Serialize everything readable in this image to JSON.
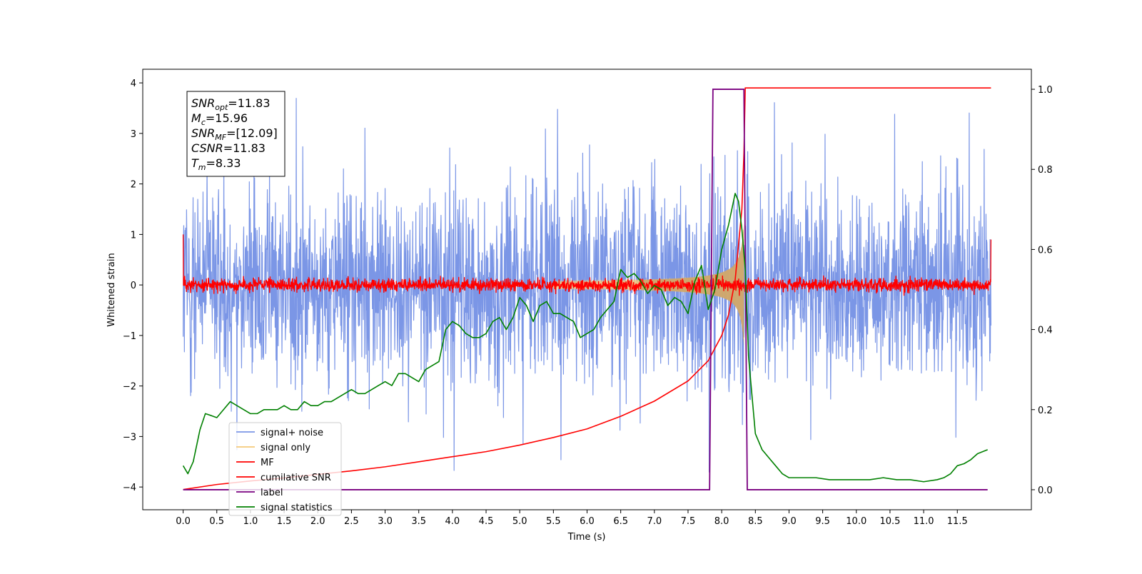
{
  "chart_data": {
    "type": "line",
    "title": "",
    "xlabel": "Time (s)",
    "ylabel": "Whitened strain",
    "ylabel_right": "",
    "xlim": [
      -0.6,
      12.6
    ],
    "ylim": [
      -4.45,
      4.27
    ],
    "ylim_right": [
      -0.05,
      1.05
    ],
    "x_ticks": [
      0.0,
      0.5,
      1.0,
      1.5,
      2.0,
      2.5,
      3.0,
      3.5,
      4.0,
      4.5,
      5.0,
      5.5,
      6.0,
      6.5,
      7.0,
      7.5,
      8.0,
      8.5,
      9.0,
      9.5,
      10.0,
      10.5,
      11.0,
      11.5
    ],
    "x_tick_labels": [
      "0.0",
      "0.5",
      "1.0",
      "1.5",
      "2.0",
      "2.5",
      "3.0",
      "3.5",
      "4.0",
      "4.5",
      "5.0",
      "5.5",
      "6.0",
      "6.5",
      "7.0",
      "7.5",
      "8.0",
      "8.5",
      "9.0",
      "9.5",
      "10.0",
      "10.5",
      "11.0",
      "11.5"
    ],
    "y_ticks": [
      -4,
      -3,
      -2,
      -1,
      0,
      1,
      2,
      3,
      4
    ],
    "y_tick_labels": [
      "−4",
      "−3",
      "−2",
      "−1",
      "0",
      "1",
      "2",
      "3",
      "4"
    ],
    "y_ticks_right": [
      0.0,
      0.2,
      0.4,
      0.6,
      0.8,
      1.0
    ],
    "y_tick_labels_right": [
      "0.0",
      "0.2",
      "0.4",
      "0.6",
      "0.8",
      "1.0"
    ],
    "grid": false,
    "legend_position": "lower-left",
    "annotation": {
      "lines": [
        {
          "base": "SNR",
          "sub": "opt",
          "rest": "=11.83"
        },
        {
          "base": "M",
          "sub": "c",
          "rest": "=15.96"
        },
        {
          "base": "SNR",
          "sub": "MF",
          "rest": "=[12.09]"
        },
        {
          "base": "CSNR",
          "sub": "",
          "rest": "=11.83"
        },
        {
          "base": "T",
          "sub": "m",
          "rest": "=8.33"
        }
      ]
    },
    "series": [
      {
        "name": "signal+ noise",
        "axis": "left",
        "color": "#7b96e6",
        "kind": "noise-band",
        "x_range": [
          0.0,
          12.0
        ],
        "envelope_typical": 1.6,
        "envelope_extreme": [
          -4.1,
          3.9
        ]
      },
      {
        "name": "signal only",
        "axis": "left",
        "color": "#f5c97a",
        "kind": "chirp",
        "x_range": [
          5.5,
          8.33
        ],
        "amplitude_at_end": 1.3
      },
      {
        "name": "MF",
        "axis": "left",
        "color": "#ff0000",
        "kind": "noise-band",
        "x_range": [
          0.0,
          12.0
        ],
        "envelope_typical": 0.12,
        "endpoint_values": [
          1.0,
          0.9
        ]
      },
      {
        "name": "cumilative SNR",
        "axis": "left",
        "color": "#ff0000",
        "x": [
          0.0,
          0.5,
          1.0,
          1.5,
          2.0,
          2.5,
          3.0,
          3.5,
          4.0,
          4.5,
          5.0,
          5.5,
          6.0,
          6.5,
          7.0,
          7.5,
          7.8,
          8.0,
          8.1,
          8.2,
          8.3,
          8.33,
          8.35,
          12.0
        ],
        "y": [
          -4.05,
          -3.95,
          -3.88,
          -3.82,
          -3.75,
          -3.68,
          -3.6,
          -3.5,
          -3.4,
          -3.3,
          -3.17,
          -3.02,
          -2.85,
          -2.6,
          -2.3,
          -1.9,
          -1.5,
          -1.0,
          -0.6,
          0.1,
          1.5,
          2.6,
          3.9,
          3.9
        ]
      },
      {
        "name": "label",
        "axis": "right",
        "color": "#7a0080",
        "x": [
          0.0,
          7.82,
          7.87,
          8.33,
          8.38,
          11.95
        ],
        "y": [
          0.0,
          0.0,
          1.0,
          1.0,
          0.0,
          0.0
        ]
      },
      {
        "name": "signal statistics",
        "axis": "right",
        "color": "#008000",
        "x": [
          0.0,
          0.07,
          0.15,
          0.25,
          0.33,
          0.42,
          0.5,
          0.6,
          0.7,
          0.8,
          0.9,
          1.0,
          1.1,
          1.2,
          1.3,
          1.4,
          1.5,
          1.6,
          1.7,
          1.8,
          1.9,
          2.0,
          2.1,
          2.2,
          2.3,
          2.4,
          2.5,
          2.6,
          2.7,
          2.8,
          2.9,
          3.0,
          3.1,
          3.2,
          3.3,
          3.4,
          3.5,
          3.6,
          3.7,
          3.8,
          3.9,
          4.0,
          4.1,
          4.2,
          4.3,
          4.4,
          4.5,
          4.6,
          4.7,
          4.8,
          4.9,
          5.0,
          5.1,
          5.2,
          5.3,
          5.4,
          5.5,
          5.6,
          5.7,
          5.8,
          5.9,
          6.0,
          6.1,
          6.2,
          6.3,
          6.4,
          6.5,
          6.6,
          6.7,
          6.8,
          6.9,
          7.0,
          7.1,
          7.2,
          7.3,
          7.4,
          7.5,
          7.6,
          7.7,
          7.8,
          7.9,
          8.0,
          8.1,
          8.2,
          8.25,
          8.3,
          8.35,
          8.4,
          8.5,
          8.6,
          8.7,
          8.8,
          8.9,
          9.0,
          9.2,
          9.4,
          9.6,
          9.8,
          10.0,
          10.2,
          10.4,
          10.6,
          10.8,
          11.0,
          11.2,
          11.3,
          11.4,
          11.5,
          11.6,
          11.7,
          11.8,
          11.95
        ],
        "y": [
          0.06,
          0.04,
          0.07,
          0.15,
          0.19,
          0.185,
          0.18,
          0.2,
          0.22,
          0.21,
          0.2,
          0.19,
          0.19,
          0.2,
          0.2,
          0.2,
          0.21,
          0.2,
          0.2,
          0.22,
          0.21,
          0.21,
          0.22,
          0.22,
          0.23,
          0.24,
          0.25,
          0.24,
          0.24,
          0.25,
          0.26,
          0.27,
          0.26,
          0.29,
          0.29,
          0.28,
          0.27,
          0.3,
          0.31,
          0.32,
          0.4,
          0.42,
          0.41,
          0.39,
          0.38,
          0.38,
          0.39,
          0.42,
          0.43,
          0.4,
          0.43,
          0.48,
          0.46,
          0.42,
          0.46,
          0.47,
          0.44,
          0.44,
          0.43,
          0.42,
          0.38,
          0.39,
          0.4,
          0.43,
          0.45,
          0.47,
          0.55,
          0.53,
          0.54,
          0.52,
          0.49,
          0.51,
          0.5,
          0.46,
          0.48,
          0.47,
          0.44,
          0.52,
          0.56,
          0.45,
          0.5,
          0.6,
          0.66,
          0.74,
          0.72,
          0.65,
          0.55,
          0.33,
          0.14,
          0.1,
          0.08,
          0.06,
          0.04,
          0.03,
          0.03,
          0.03,
          0.025,
          0.025,
          0.025,
          0.025,
          0.03,
          0.025,
          0.025,
          0.02,
          0.025,
          0.03,
          0.04,
          0.06,
          0.065,
          0.075,
          0.09,
          0.1
        ]
      }
    ]
  }
}
